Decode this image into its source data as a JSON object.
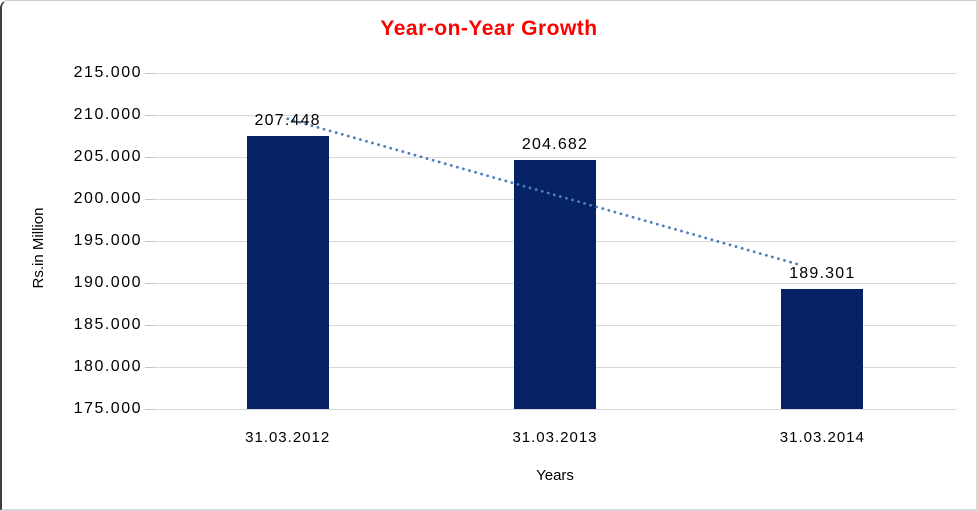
{
  "chart_data": {
    "type": "bar",
    "title": "Year-on-Year Growth",
    "title_color": "#ff0000",
    "categories": [
      "31.03.2012",
      "31.03.2013",
      "31.03.2014"
    ],
    "values": [
      207.448,
      204.682,
      189.301
    ],
    "data_labels": [
      "207.448",
      "204.682",
      "189.301"
    ],
    "xlabel": "Years",
    "ylabel": "Rs.in Million",
    "ylim": [
      175,
      215
    ],
    "ytick_step": 5,
    "ytick_labels": [
      "175.000",
      "180.000",
      "185.000",
      "190.000",
      "195.000",
      "200.000",
      "205.000",
      "210.000",
      "215.000"
    ],
    "grid": true,
    "legend": "none",
    "bar_color": "#06236213",
    "bar_fill": "#052364",
    "gridline_color": "#d9d9d9",
    "trendline": {
      "style": "dotted",
      "color": "#4a7ebd",
      "start_category_index": 0,
      "end_category_index": 2,
      "start_value": 209.548,
      "end_value": 191.402,
      "visible_end_fraction": 0.955
    }
  }
}
